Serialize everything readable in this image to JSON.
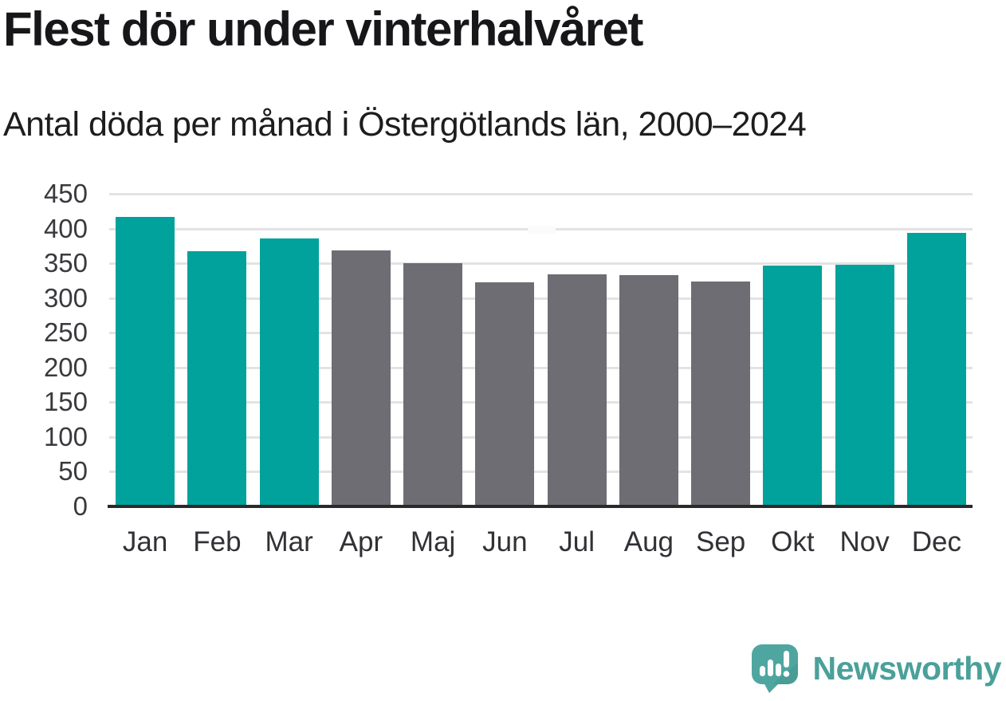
{
  "title": "Flest dör under vinterhalvåret",
  "subtitle": "Antal döda per månad i Östergötlands län, 2000–2024",
  "chart_data": {
    "type": "bar",
    "title": "Flest dör under vinterhalvåret",
    "subtitle": "Antal döda per månad i Östergötlands län, 2000–2024",
    "categories": [
      "Jan",
      "Feb",
      "Mar",
      "Apr",
      "Maj",
      "Jun",
      "Jul",
      "Aug",
      "Sep",
      "Okt",
      "Nov",
      "Dec"
    ],
    "values": [
      417,
      367,
      386,
      368,
      350,
      323,
      334,
      333,
      324,
      347,
      348,
      394
    ],
    "xlabel": "",
    "ylabel": "",
    "ylim": [
      0,
      450
    ],
    "yticks": [
      450,
      400,
      350,
      300,
      250,
      200,
      150,
      100,
      50,
      0
    ],
    "grid": true,
    "legend": "none",
    "highlight_categories": [
      "Jan",
      "Feb",
      "Mar",
      "Okt",
      "Nov",
      "Dec"
    ],
    "highlight_color": "#00a29b",
    "default_color": "#6e6d73"
  },
  "colors": {
    "bar_teal": "#00a29b",
    "bar_gray": "#6e6d73",
    "gridline": "#e3e3e5",
    "axis_line": "#2a2a2c",
    "title_text": "#17171a",
    "tick_text": "#3a3a3e",
    "brand_teal": "#4ba09b"
  },
  "branding": {
    "wordmark": "Newsworthy",
    "logo_icon": "speech-bubble-bar-chart-icon"
  }
}
